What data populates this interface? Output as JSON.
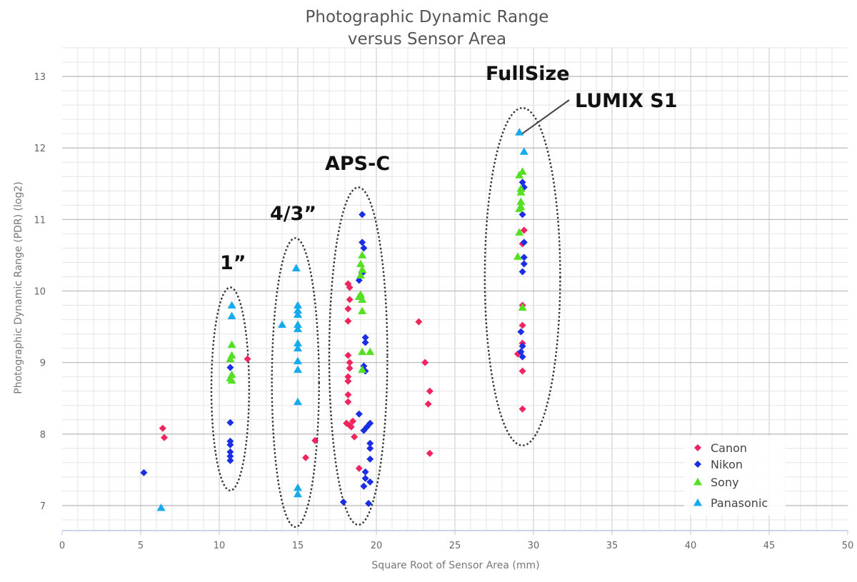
{
  "chart_data": {
    "type": "scatter",
    "title": [
      "Photographic Dynamic Range",
      "versus Sensor Area"
    ],
    "xlabel": "Square Root of Sensor Area (mm)",
    "ylabel": "Photographic Dynamic Range (PDR) (log2)",
    "xlim": [
      0,
      50
    ],
    "ylim": [
      6.65,
      13.4
    ],
    "xticks": [
      0,
      5,
      10,
      15,
      20,
      25,
      30,
      35,
      40,
      45,
      50
    ],
    "yticks": [
      7,
      8,
      9,
      10,
      11,
      12,
      13
    ],
    "grid": true,
    "legend_position": "bottom-right",
    "series": [
      {
        "name": "Canon",
        "color": "#f0245e",
        "marker": "diamond",
        "points": [
          [
            6.4,
            8.08
          ],
          [
            6.5,
            7.95
          ],
          [
            11.8,
            9.05
          ],
          [
            15.5,
            7.67
          ],
          [
            16.1,
            7.91
          ],
          [
            18.2,
            10.1
          ],
          [
            18.3,
            10.05
          ],
          [
            18.3,
            9.88
          ],
          [
            18.2,
            9.75
          ],
          [
            18.2,
            9.58
          ],
          [
            18.2,
            9.1
          ],
          [
            18.3,
            9.0
          ],
          [
            18.3,
            8.92
          ],
          [
            18.2,
            8.8
          ],
          [
            18.2,
            8.74
          ],
          [
            18.2,
            8.55
          ],
          [
            18.2,
            8.45
          ],
          [
            18.1,
            8.15
          ],
          [
            18.3,
            8.12
          ],
          [
            18.4,
            8.1
          ],
          [
            18.5,
            8.18
          ],
          [
            18.6,
            7.96
          ],
          [
            18.9,
            7.52
          ],
          [
            22.7,
            9.57
          ],
          [
            23.1,
            9.0
          ],
          [
            23.4,
            8.6
          ],
          [
            23.3,
            8.42
          ],
          [
            23.4,
            7.73
          ],
          [
            29.0,
            9.12
          ],
          [
            29.3,
            9.8
          ],
          [
            29.3,
            9.52
          ],
          [
            29.3,
            9.27
          ],
          [
            29.3,
            8.88
          ],
          [
            29.3,
            8.35
          ],
          [
            29.4,
            10.85
          ],
          [
            29.3,
            10.66
          ]
        ]
      },
      {
        "name": "Nikon",
        "color": "#1a2ee6",
        "marker": "diamond",
        "points": [
          [
            5.2,
            7.46
          ],
          [
            10.7,
            8.93
          ],
          [
            10.7,
            8.16
          ],
          [
            10.7,
            7.9
          ],
          [
            10.7,
            7.85
          ],
          [
            10.7,
            7.75
          ],
          [
            10.7,
            7.69
          ],
          [
            10.7,
            7.63
          ],
          [
            17.9,
            7.05
          ],
          [
            18.9,
            8.28
          ],
          [
            18.9,
            10.15
          ],
          [
            19.1,
            11.07
          ],
          [
            19.1,
            10.68
          ],
          [
            19.2,
            10.6
          ],
          [
            19.1,
            10.25
          ],
          [
            19.3,
            9.35
          ],
          [
            19.3,
            9.28
          ],
          [
            19.2,
            8.95
          ],
          [
            19.3,
            8.88
          ],
          [
            19.4,
            8.1
          ],
          [
            19.6,
            8.15
          ],
          [
            19.2,
            8.05
          ],
          [
            19.6,
            7.87
          ],
          [
            19.6,
            7.8
          ],
          [
            19.6,
            7.65
          ],
          [
            19.3,
            7.47
          ],
          [
            19.3,
            7.38
          ],
          [
            19.6,
            7.33
          ],
          [
            19.2,
            7.27
          ],
          [
            19.5,
            7.03
          ],
          [
            29.3,
            11.52
          ],
          [
            29.4,
            11.45
          ],
          [
            29.3,
            11.07
          ],
          [
            29.4,
            10.68
          ],
          [
            29.4,
            10.47
          ],
          [
            29.4,
            10.38
          ],
          [
            29.3,
            10.27
          ],
          [
            29.2,
            9.43
          ],
          [
            29.3,
            9.23
          ],
          [
            29.2,
            9.15
          ],
          [
            29.3,
            9.08
          ]
        ]
      },
      {
        "name": "Sony",
        "color": "#55e024",
        "marker": "triangle",
        "points": [
          [
            10.8,
            9.25
          ],
          [
            10.8,
            9.1
          ],
          [
            10.7,
            9.05
          ],
          [
            10.8,
            8.83
          ],
          [
            10.7,
            8.78
          ],
          [
            10.8,
            8.75
          ],
          [
            18.9,
            9.92
          ],
          [
            19.0,
            9.95
          ],
          [
            19.1,
            10.5
          ],
          [
            19.0,
            10.38
          ],
          [
            19.1,
            10.3
          ],
          [
            19.0,
            10.22
          ],
          [
            19.1,
            9.88
          ],
          [
            19.1,
            9.72
          ],
          [
            19.1,
            9.15
          ],
          [
            19.6,
            9.15
          ],
          [
            19.1,
            8.9
          ],
          [
            29.1,
            11.62
          ],
          [
            29.3,
            11.67
          ],
          [
            29.2,
            11.43
          ],
          [
            29.2,
            11.38
          ],
          [
            29.2,
            11.25
          ],
          [
            29.2,
            11.18
          ],
          [
            29.1,
            11.15
          ],
          [
            29.1,
            10.82
          ],
          [
            29.0,
            10.48
          ],
          [
            29.3,
            9.77
          ]
        ]
      },
      {
        "name": "Panasonic",
        "color": "#16aaee",
        "marker": "triangle",
        "points": [
          [
            6.3,
            6.97
          ],
          [
            10.8,
            9.8
          ],
          [
            10.8,
            9.65
          ],
          [
            14.0,
            9.53
          ],
          [
            14.9,
            10.32
          ],
          [
            15.0,
            9.8
          ],
          [
            15.0,
            9.73
          ],
          [
            15.0,
            9.67
          ],
          [
            15.0,
            9.53
          ],
          [
            15.0,
            9.47
          ],
          [
            15.0,
            9.27
          ],
          [
            15.0,
            9.2
          ],
          [
            15.0,
            9.02
          ],
          [
            15.0,
            8.9
          ],
          [
            15.0,
            8.45
          ],
          [
            15.0,
            7.25
          ],
          [
            15.0,
            7.16
          ],
          [
            29.1,
            12.22
          ],
          [
            29.4,
            11.95
          ]
        ]
      }
    ],
    "annotations": [
      {
        "label": "1”",
        "ellipse": {
          "cx": 10.7,
          "cy": 8.63,
          "rx": 1.2,
          "ry": 1.42
        }
      },
      {
        "label": "4/3”",
        "ellipse": {
          "cx": 14.85,
          "cy": 8.72,
          "rx": 1.5,
          "ry": 2.02
        }
      },
      {
        "label": "APS-C",
        "ellipse": {
          "cx": 18.85,
          "cy": 9.09,
          "rx": 1.85,
          "ry": 2.36
        }
      },
      {
        "label": "FullSize",
        "ellipse": {
          "cx": 29.3,
          "cy": 10.2,
          "rx": 2.4,
          "ry": 2.36
        }
      },
      {
        "label": "LUMIX S1",
        "pointer_to": [
          29.1,
          12.22
        ]
      }
    ]
  }
}
